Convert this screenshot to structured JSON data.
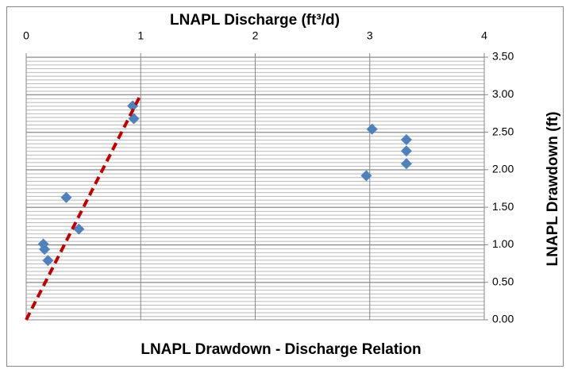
{
  "chart_data": {
    "type": "scatter",
    "title": "LNAPL Drawdown - Discharge Relation",
    "x_label": "LNAPL Discharge (ft³/d)",
    "y_label": "LNAPL Drawdown (ft)",
    "series": [
      {
        "mode": "markers",
        "color": "#4f81bd",
        "x": [
          0.15,
          0.16,
          0.19,
          0.35,
          0.46,
          0.93,
          0.94,
          2.97,
          3.02,
          3.32,
          3.32,
          3.32
        ],
        "values": [
          1.01,
          0.94,
          0.79,
          1.63,
          1.21,
          2.85,
          2.68,
          1.92,
          2.54,
          2.4,
          2.25,
          2.08
        ]
      },
      {
        "mode": "line",
        "dashed": true,
        "color": "#c00000",
        "x": [
          0,
          1
        ],
        "values": [
          0,
          3
        ]
      }
    ],
    "xlim": [
      0,
      4
    ],
    "xticks": [
      0,
      1,
      2,
      3,
      4
    ],
    "ylim": [
      0,
      3.5
    ],
    "yticks": [
      {
        "value": 0,
        "label": "0.00"
      },
      {
        "value": 0.5,
        "label": "0.50"
      },
      {
        "value": 1,
        "label": "1.00"
      },
      {
        "value": 1.5,
        "label": "1.50"
      },
      {
        "value": 2,
        "label": "2.00"
      },
      {
        "value": 2.5,
        "label": "2.50"
      },
      {
        "value": 3,
        "label": "3.00"
      },
      {
        "value": 3.5,
        "label": "3.50"
      }
    ],
    "x_axis_position": "top",
    "y_axis_position": "right",
    "grid": true
  }
}
